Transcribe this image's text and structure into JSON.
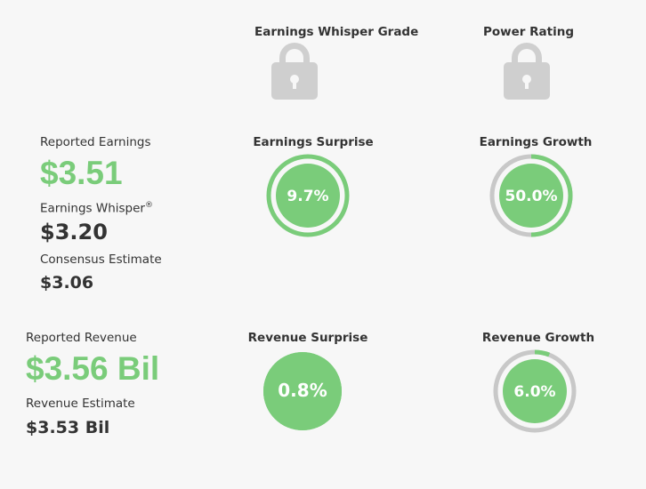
{
  "headers": {
    "earnings_whisper_grade": "Earnings Whisper Grade",
    "power_rating": "Power Rating",
    "earnings_surprise": "Earnings Surprise",
    "earnings_growth": "Earnings Growth",
    "revenue_surprise": "Revenue Surprise",
    "revenue_growth": "Revenue Growth"
  },
  "icons": {
    "grade_lock": "lock-icon",
    "power_lock": "lock-icon"
  },
  "earnings": {
    "reported_label": "Reported Earnings",
    "reported_value": "$3.51",
    "whisper_label": "Earnings Whisper",
    "whisper_mark": "®",
    "whisper_value": "$3.20",
    "consensus_label": "Consensus Estimate",
    "consensus_value": "$3.06"
  },
  "revenue": {
    "reported_label": "Reported Revenue",
    "reported_value": "$3.56 Bil",
    "estimate_label": "Revenue Estimate",
    "estimate_value": "$3.53 Bil"
  },
  "gauges": {
    "earnings_surprise": {
      "label": "9.7%",
      "fraction": 1.0,
      "ring": true
    },
    "earnings_growth": {
      "label": "50.0%",
      "fraction": 0.5,
      "ring": true
    },
    "revenue_surprise": {
      "label": "0.8%",
      "fraction": 1.0,
      "ring": false
    },
    "revenue_growth": {
      "label": "6.0%",
      "fraction": 0.06,
      "ring": true
    }
  },
  "colors": {
    "accent_green": "#7acc7a",
    "track_gray": "#c8c8c8",
    "lock_gray": "#cfcfcf",
    "text_dark": "#333333",
    "background": "#f7f7f7"
  }
}
